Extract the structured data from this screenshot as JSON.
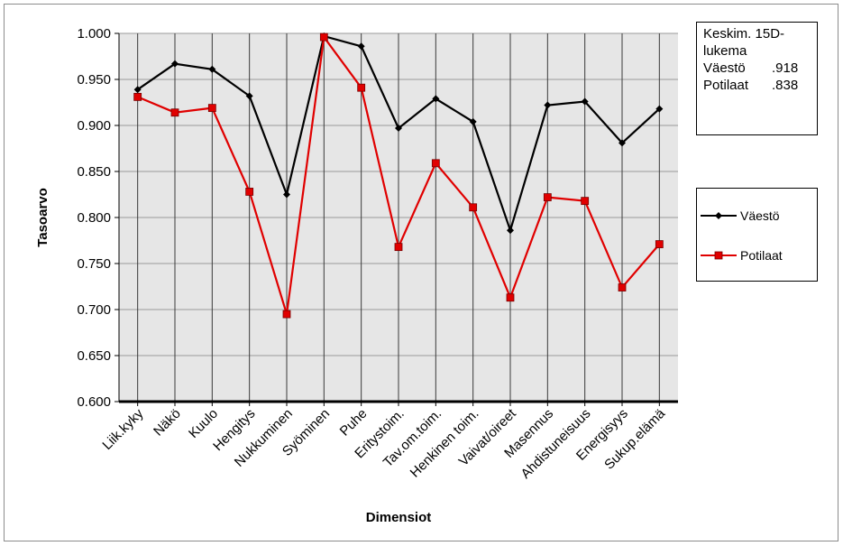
{
  "info_box": {
    "line1": "Keskim. 15D-",
    "line2": "lukema",
    "rows": [
      {
        "label": "Väestö",
        "value": ".918"
      },
      {
        "label": "Potilaat",
        "value": ".838"
      }
    ]
  },
  "chart_data": {
    "type": "line",
    "title": "",
    "xlabel": "Dimensiot",
    "ylabel": "Tasoarvo",
    "ylim": [
      0.6,
      1.0
    ],
    "ytick_step": 0.05,
    "y_tick_labels": [
      "0.600",
      "0.650",
      "0.700",
      "0.750",
      "0.800",
      "0.850",
      "0.900",
      "0.950",
      "1.000"
    ],
    "grid": true,
    "legend_position": "right",
    "categories": [
      "Liik.kyky",
      "Näkö",
      "Kuulo",
      "Hengitys",
      "Nukkuminen",
      "Syöminen",
      "Puhe",
      "Eritystoim.",
      "Tav.om.toim.",
      "Henkinen toim.",
      "Vaivat/oireet",
      "Masennus",
      "Ahdistuneisuus",
      "Energisyys",
      "Sukup.elämä"
    ],
    "series": [
      {
        "name": "Väestö",
        "color": "#000000",
        "marker": "diamond",
        "values": [
          0.939,
          0.967,
          0.961,
          0.932,
          0.825,
          0.997,
          0.986,
          0.897,
          0.929,
          0.904,
          0.786,
          0.922,
          0.926,
          0.881,
          0.918
        ]
      },
      {
        "name": "Potilaat",
        "color": "#e00000",
        "marker": "square",
        "values": [
          0.931,
          0.914,
          0.919,
          0.828,
          0.695,
          0.996,
          0.941,
          0.768,
          0.859,
          0.811,
          0.713,
          0.822,
          0.818,
          0.724,
          0.771
        ]
      }
    ],
    "plot_background": "#e6e6e6"
  }
}
